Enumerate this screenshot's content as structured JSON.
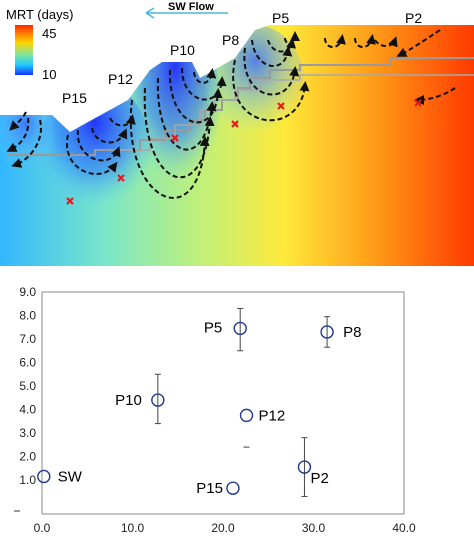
{
  "map": {
    "colorbar_title": "MRT (days)",
    "colorbar_max": "45",
    "colorbar_min": "10",
    "flow_label": "SW Flow",
    "colors": {
      "cool": "#1e3cff",
      "mid": "#ffee22",
      "hot": "#ff2200",
      "sky": "#ffffff",
      "flowpath": "#111111",
      "water_table": "#9a9a9a",
      "sample_marker": "#e41a1c"
    },
    "well_labels": [
      "P15",
      "P12",
      "P10",
      "P8",
      "P5",
      "P2"
    ]
  },
  "chart_data": {
    "type": "scatter",
    "title": "",
    "xlabel": "",
    "ylabel": "",
    "xlim": [
      0,
      40
    ],
    "ylim": [
      0,
      9
    ],
    "x_ticks": [
      "0.0",
      "10.0",
      "20.0",
      "30.0",
      "40.0"
    ],
    "y_ticks": [
      "1.0",
      "2.0",
      "3.0",
      "4.0",
      "5.0",
      "6.0",
      "7.0",
      "8.0",
      "9.0"
    ],
    "grid": false,
    "marker": "open-circle",
    "marker_color": "#1f3a93",
    "points": [
      {
        "label": "SW",
        "x": 0.2,
        "y": 1.15,
        "err_low": null,
        "err_high": null
      },
      {
        "label": "P10",
        "x": 12.8,
        "y": 4.4,
        "err_low": 3.4,
        "err_high": 5.5
      },
      {
        "label": "P5",
        "x": 21.9,
        "y": 7.45,
        "err_low": 6.5,
        "err_high": 8.3
      },
      {
        "label": "P12",
        "x": 22.6,
        "y": 3.75,
        "err_low": null,
        "err_high": null
      },
      {
        "label": "P15",
        "x": 21.1,
        "y": 0.65,
        "err_low": null,
        "err_high": null
      },
      {
        "label": "P2",
        "x": 29.0,
        "y": 1.55,
        "err_low": 0.3,
        "err_high": 2.8
      },
      {
        "label": "P8",
        "x": 31.5,
        "y": 7.3,
        "err_low": 6.65,
        "err_high": 7.95
      }
    ]
  }
}
